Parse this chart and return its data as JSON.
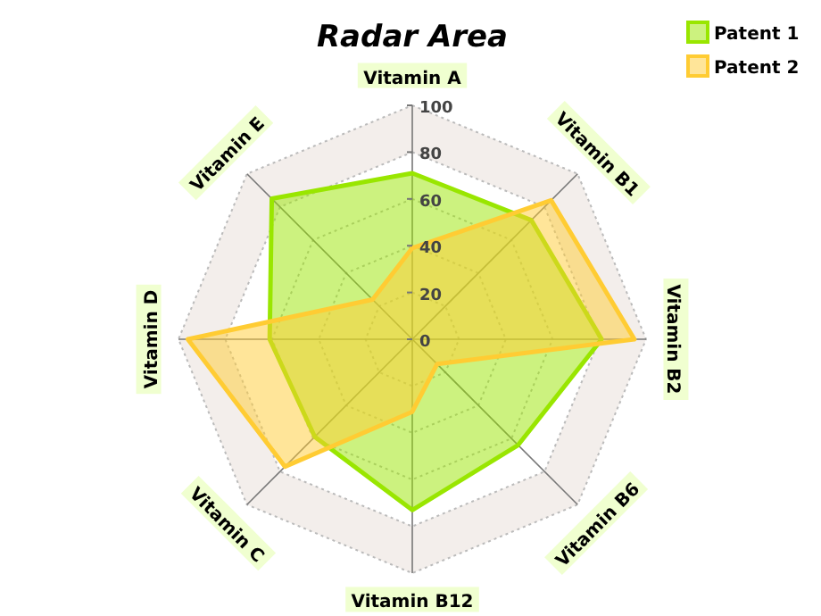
{
  "chart_data": {
    "type": "radar",
    "title": "Radar Area",
    "categories": [
      "Vitamin A",
      "Vitamin B1",
      "Vitamin B2",
      "Vitamin B6",
      "Vitamin B12",
      "Vitamin C",
      "Vitamin D",
      "Vitamin E"
    ],
    "series": [
      {
        "name": "Patent 1",
        "color": "#99e600",
        "values": [
          71,
          72,
          81,
          64,
          73,
          59,
          61,
          85
        ]
      },
      {
        "name": "Patent 2",
        "color": "#ffcc33",
        "values": [
          39,
          84,
          95,
          15,
          31,
          77,
          96,
          24
        ]
      }
    ],
    "ylim": [
      0,
      100
    ],
    "yticks": [
      0,
      20,
      40,
      60,
      80,
      100
    ],
    "grid": true,
    "legend": "top right"
  }
}
